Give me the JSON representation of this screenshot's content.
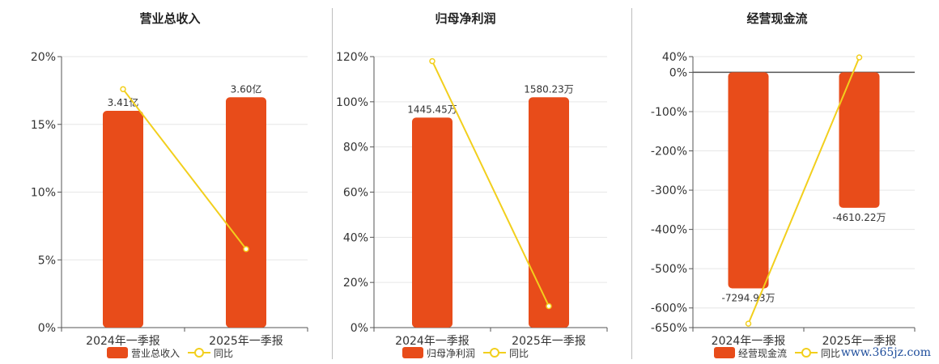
{
  "watermark": "www.365jz.com",
  "chart_data": [
    {
      "type": "bar",
      "title": "营业总收入",
      "categories": [
        "2024年一季报",
        "2025年一季报"
      ],
      "series": [
        {
          "name": "营业总收入",
          "type": "bar",
          "color": "#e84c1a",
          "labels": [
            "3.41亿",
            "3.60亿"
          ],
          "values": [
            16.0,
            17.0
          ]
        },
        {
          "name": "同比",
          "type": "line",
          "color": "#f2cf1d",
          "values": [
            17.6,
            5.8
          ]
        }
      ],
      "yaxis": {
        "ticks": [
          0,
          5,
          10,
          15,
          20
        ],
        "tick_labels": [
          "0%",
          "5%",
          "10%",
          "15%",
          "20%"
        ],
        "ylim": [
          0,
          20
        ]
      },
      "grid": true,
      "legend": "bottom"
    },
    {
      "type": "bar",
      "title": "归母净利润",
      "categories": [
        "2024年一季报",
        "2025年一季报"
      ],
      "series": [
        {
          "name": "归母净利润",
          "type": "bar",
          "color": "#e84c1a",
          "labels": [
            "1445.45万",
            "1580.23万"
          ],
          "values": [
            93,
            102
          ]
        },
        {
          "name": "同比",
          "type": "line",
          "color": "#f2cf1d",
          "values": [
            118,
            9.5
          ]
        }
      ],
      "yaxis": {
        "ticks": [
          0,
          20,
          40,
          60,
          80,
          100,
          120
        ],
        "tick_labels": [
          "0%",
          "20%",
          "40%",
          "60%",
          "80%",
          "100%",
          "120%"
        ],
        "ylim": [
          0,
          120
        ]
      },
      "grid": true,
      "legend": "bottom"
    },
    {
      "type": "bar",
      "title": "经营现金流",
      "categories": [
        "2024年一季报",
        "2025年一季报"
      ],
      "series": [
        {
          "name": "经营现金流",
          "type": "bar",
          "color": "#e84c1a",
          "labels": [
            "-7294.93万",
            "-4610.22万"
          ],
          "values": [
            -550,
            -345
          ]
        },
        {
          "name": "同比",
          "type": "line",
          "color": "#f2cf1d",
          "values": [
            -640,
            38
          ]
        }
      ],
      "yaxis": {
        "ticks": [
          40,
          0,
          -100,
          -200,
          -300,
          -400,
          -500,
          -600,
          -650
        ],
        "tick_labels": [
          "40%",
          "0%",
          "-100%",
          "-200%",
          "-300%",
          "-400%",
          "-500%",
          "-600%",
          "-650%"
        ],
        "ylim": [
          -650,
          40
        ]
      },
      "grid": true,
      "legend": "bottom"
    }
  ]
}
